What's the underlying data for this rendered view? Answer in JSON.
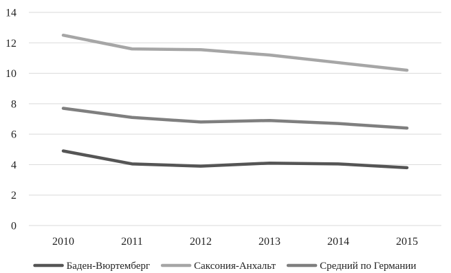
{
  "chart_data": {
    "type": "line",
    "title": "",
    "xlabel": "",
    "ylabel": "",
    "categories": [
      "2010",
      "2011",
      "2012",
      "2013",
      "2014",
      "2015"
    ],
    "ylim": [
      0,
      14
    ],
    "yticks": [
      0,
      2,
      4,
      6,
      8,
      10,
      12,
      14
    ],
    "grid": true,
    "legend_position": "bottom",
    "series": [
      {
        "name": "Баден-Вюртемберг",
        "color": "#555555",
        "values": [
          4.9,
          4.05,
          3.9,
          4.1,
          4.05,
          3.8
        ]
      },
      {
        "name": "Саксония-Анхальт",
        "color": "#a6a6a6",
        "values": [
          12.5,
          11.6,
          11.55,
          11.2,
          10.7,
          10.2
        ]
      },
      {
        "name": "Средний по Германии",
        "color": "#7f7f7f",
        "values": [
          7.7,
          7.1,
          6.8,
          6.9,
          6.7,
          6.4
        ]
      }
    ]
  }
}
